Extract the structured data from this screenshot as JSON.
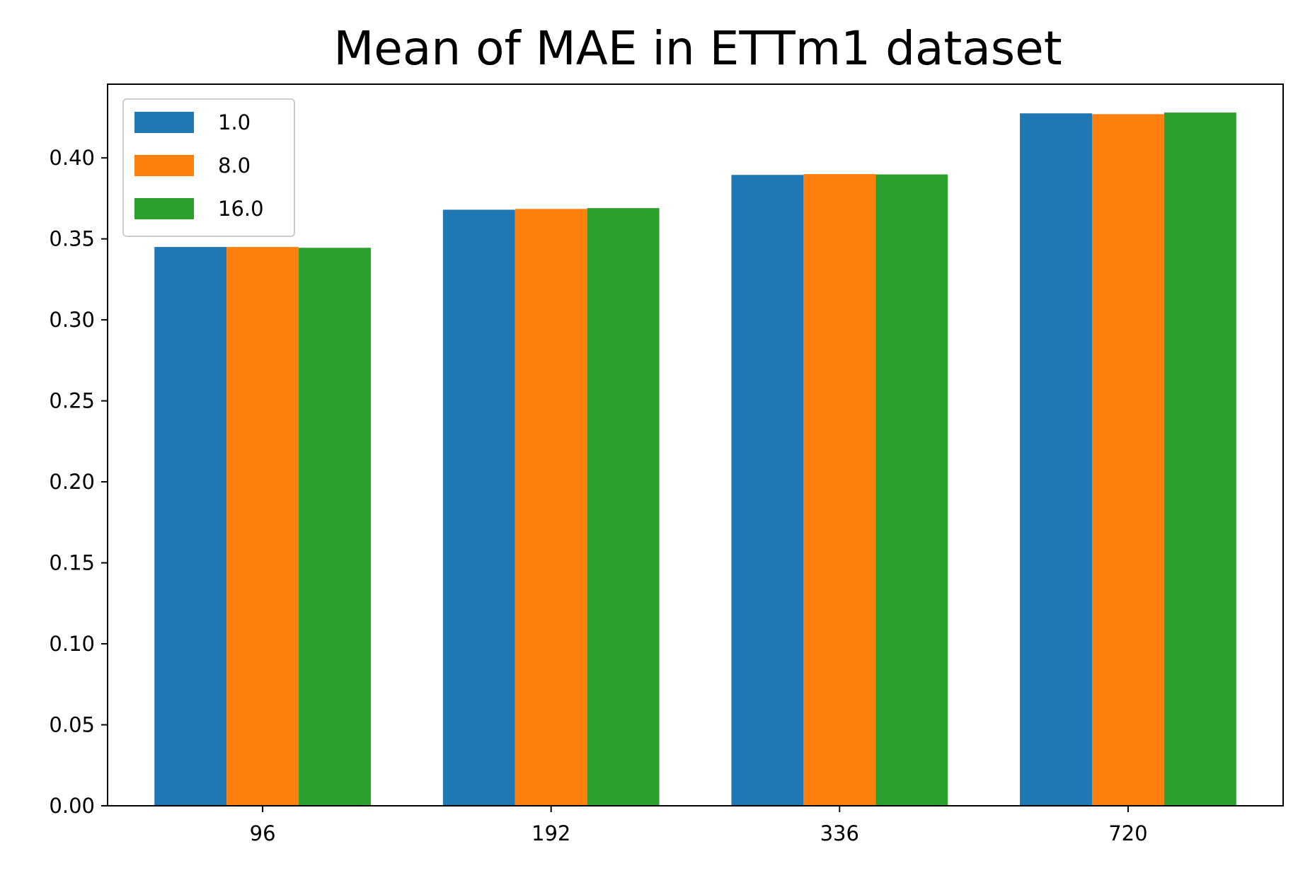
{
  "chart_data": {
    "type": "bar",
    "title": "Mean of MAE in ETTm1 dataset",
    "xlabel": "",
    "ylabel": "",
    "categories": [
      "96",
      "192",
      "336",
      "720"
    ],
    "series": [
      {
        "name": "1.0",
        "color": "#1f77b4",
        "values": [
          0.345,
          0.368,
          0.3895,
          0.4275
        ]
      },
      {
        "name": "8.0",
        "color": "#ff7f0e",
        "values": [
          0.345,
          0.3685,
          0.39,
          0.427
        ]
      },
      {
        "name": "16.0",
        "color": "#2ca02c",
        "values": [
          0.3445,
          0.369,
          0.3898,
          0.428
        ]
      }
    ],
    "ylim": [
      0,
      0.4455
    ],
    "yticks": [
      "0.00",
      "0.05",
      "0.10",
      "0.15",
      "0.20",
      "0.25",
      "0.30",
      "0.35",
      "0.40"
    ],
    "grid": false,
    "legend_position": "top-left"
  }
}
